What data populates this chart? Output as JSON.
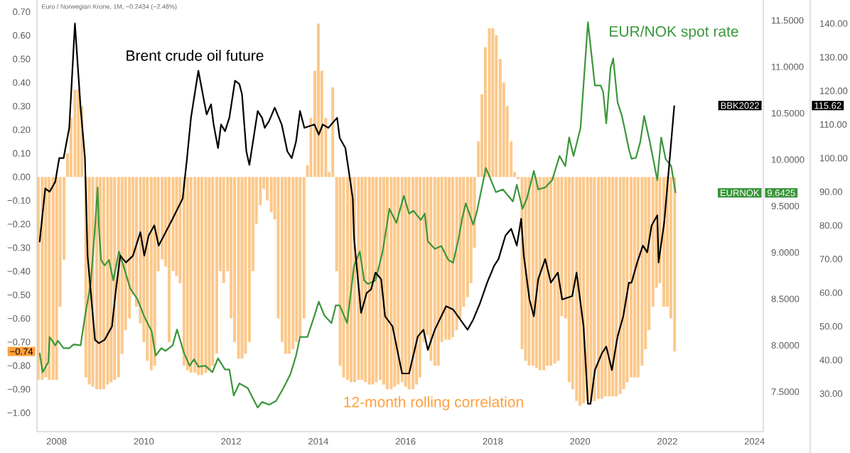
{
  "chart_data": {
    "type": "bar",
    "subtitle": "Euro / Norwegian Krone, 1M, −0.2434 (−2.46%)",
    "series": [
      {
        "name": "12-month rolling correlation",
        "color": "#fcc88a",
        "x": [
          2007.58,
          2007.67,
          2007.75,
          2007.83,
          2007.92,
          2008.0,
          2008.08,
          2008.17,
          2008.25,
          2008.33,
          2008.42,
          2008.5,
          2008.58,
          2008.67,
          2008.75,
          2008.83,
          2008.92,
          2009.0,
          2009.08,
          2009.17,
          2009.25,
          2009.33,
          2009.42,
          2009.5,
          2009.58,
          2009.67,
          2009.75,
          2009.83,
          2009.92,
          2010.0,
          2010.08,
          2010.17,
          2010.25,
          2010.33,
          2010.42,
          2010.5,
          2010.58,
          2010.67,
          2010.75,
          2010.83,
          2010.92,
          2011.0,
          2011.08,
          2011.17,
          2011.25,
          2011.33,
          2011.42,
          2011.5,
          2011.58,
          2011.67,
          2011.75,
          2011.83,
          2011.92,
          2012.0,
          2012.08,
          2012.17,
          2012.25,
          2012.33,
          2012.42,
          2012.5,
          2012.58,
          2012.67,
          2012.75,
          2012.83,
          2012.92,
          2013.0,
          2013.08,
          2013.17,
          2013.25,
          2013.33,
          2013.42,
          2013.5,
          2013.58,
          2013.67,
          2013.75,
          2013.83,
          2013.92,
          2014.0,
          2014.08,
          2014.17,
          2014.25,
          2014.33,
          2014.42,
          2014.5,
          2014.58,
          2014.67,
          2014.75,
          2014.83,
          2014.92,
          2015.0,
          2015.08,
          2015.17,
          2015.25,
          2015.33,
          2015.42,
          2015.5,
          2015.58,
          2015.67,
          2015.75,
          2015.83,
          2015.92,
          2016.0,
          2016.08,
          2016.17,
          2016.25,
          2016.33,
          2016.42,
          2016.5,
          2016.58,
          2016.67,
          2016.75,
          2016.83,
          2016.92,
          2017.0,
          2017.08,
          2017.17,
          2017.25,
          2017.33,
          2017.42,
          2017.5,
          2017.58,
          2017.67,
          2017.75,
          2017.83,
          2017.92,
          2018.0,
          2018.08,
          2018.17,
          2018.25,
          2018.33,
          2018.42,
          2018.5,
          2018.58,
          2018.67,
          2018.75,
          2018.83,
          2018.92,
          2019.0,
          2019.08,
          2019.17,
          2019.25,
          2019.33,
          2019.42,
          2019.5,
          2019.58,
          2019.67,
          2019.75,
          2019.83,
          2019.92,
          2020.0,
          2020.08,
          2020.17,
          2020.25,
          2020.33,
          2020.42,
          2020.5,
          2020.58,
          2020.67,
          2020.75,
          2020.83,
          2020.92,
          2021.0,
          2021.08,
          2021.17,
          2021.25,
          2021.33,
          2021.42,
          2021.5,
          2021.58,
          2021.67,
          2021.75,
          2021.83,
          2021.92,
          2022.0,
          2022.08,
          2022.17
        ],
        "values": [
          -0.86,
          -0.86,
          -0.85,
          -0.86,
          -0.86,
          -0.86,
          -0.55,
          -0.35,
          0.1,
          0.25,
          0.37,
          0.37,
          0.3,
          -0.85,
          -0.88,
          -0.89,
          -0.9,
          -0.9,
          -0.9,
          -0.88,
          -0.87,
          -0.86,
          -0.85,
          -0.75,
          -0.65,
          -0.6,
          -0.5,
          -0.55,
          -0.62,
          -0.7,
          -0.78,
          -0.82,
          -0.8,
          -0.4,
          -0.35,
          -0.38,
          -0.7,
          -0.4,
          -0.42,
          -0.45,
          -0.8,
          -0.82,
          -0.83,
          -0.83,
          -0.84,
          -0.84,
          -0.83,
          -0.82,
          -0.8,
          -0.75,
          -0.4,
          -0.45,
          -0.4,
          -0.6,
          -0.7,
          -0.77,
          -0.77,
          -0.75,
          -0.7,
          -0.4,
          -0.2,
          -0.12,
          -0.05,
          -0.1,
          -0.15,
          -0.18,
          -0.6,
          -0.7,
          -0.75,
          -0.75,
          -0.73,
          -0.7,
          -0.68,
          -0.6,
          0.05,
          0.25,
          0.45,
          0.65,
          0.45,
          0.25,
          0.02,
          0.38,
          -0.4,
          -0.8,
          -0.85,
          -0.86,
          -0.87,
          -0.87,
          -0.86,
          -0.86,
          -0.87,
          -0.88,
          -0.88,
          -0.87,
          -0.86,
          -0.88,
          -0.9,
          -0.9,
          -0.89,
          -0.88,
          -0.87,
          -0.89,
          -0.9,
          -0.9,
          -0.88,
          -0.85,
          -0.7,
          -0.67,
          -0.78,
          -0.8,
          -0.8,
          -0.7,
          -0.69,
          -0.69,
          -0.68,
          -0.65,
          -0.6,
          -0.55,
          -0.51,
          -0.45,
          -0.3,
          0.15,
          0.35,
          0.55,
          0.63,
          0.63,
          0.6,
          0.5,
          0.4,
          0.3,
          0.15,
          0.02,
          -0.01,
          -0.73,
          -0.78,
          -0.8,
          -0.8,
          -0.81,
          -0.82,
          -0.82,
          -0.8,
          -0.8,
          -0.79,
          -0.78,
          -0.59,
          -0.6,
          -0.87,
          -0.9,
          -0.95,
          -0.97,
          -0.96,
          -0.95,
          -0.95,
          -0.95,
          -0.94,
          -0.94,
          -0.93,
          -0.93,
          -0.93,
          -0.93,
          -0.92,
          -0.9,
          -0.87,
          -0.85,
          -0.85,
          -0.85,
          -0.8,
          -0.73,
          -0.65,
          -0.55,
          -0.47,
          -0.45,
          -0.55,
          -0.55,
          -0.6,
          -0.74
        ]
      },
      {
        "name": "Brent crude oil future",
        "type": "line",
        "axis": "y3",
        "color": "#000000",
        "x": [
          2007.61,
          2007.74,
          2007.84,
          2007.97,
          2008.06,
          2008.16,
          2008.29,
          2008.42,
          2008.55,
          2008.65,
          2008.71,
          2008.88,
          2008.97,
          2009.1,
          2009.27,
          2009.36,
          2009.46,
          2009.59,
          2009.75,
          2009.92,
          2010.01,
          2010.11,
          2010.24,
          2010.34,
          2010.66,
          2010.89,
          2010.99,
          2011.08,
          2011.25,
          2011.38,
          2011.44,
          2011.54,
          2011.6,
          2011.7,
          2011.77,
          2011.86,
          2011.96,
          2012.09,
          2012.19,
          2012.25,
          2012.35,
          2012.42,
          2012.61,
          2012.71,
          2012.77,
          2012.87,
          2013.0,
          2013.16,
          2013.29,
          2013.39,
          2013.49,
          2013.58,
          2013.68,
          2013.91,
          2014.01,
          2014.1,
          2014.23,
          2014.43,
          2014.49,
          2014.62,
          2014.79,
          2014.82,
          2014.98,
          2015.11,
          2015.21,
          2015.31,
          2015.44,
          2015.53,
          2015.7,
          2015.92,
          2016.08,
          2016.28,
          2016.41,
          2016.51,
          2016.67,
          2016.93,
          2017.09,
          2017.42,
          2017.55,
          2017.71,
          2017.87,
          2018.03,
          2018.13,
          2018.29,
          2018.42,
          2018.55,
          2018.65,
          2018.71,
          2018.84,
          2018.94,
          2019.04,
          2019.2,
          2019.33,
          2019.49,
          2019.59,
          2019.82,
          2019.92,
          2020.08,
          2020.18,
          2020.24,
          2020.34,
          2020.5,
          2020.6,
          2020.73,
          2020.86,
          2020.99,
          2021.12,
          2021.18,
          2021.31,
          2021.44,
          2021.54,
          2021.64,
          2021.77,
          2021.8,
          2021.93,
          2022.03,
          2022.16
        ],
        "values": [
          75,
          91,
          90,
          93,
          100,
          100,
          109,
          140,
          115,
          100,
          71,
          46,
          45,
          46,
          50,
          61,
          71,
          69,
          71,
          78,
          71,
          77,
          80,
          74,
          82,
          88,
          100,
          112,
          126,
          117,
          113,
          116,
          110,
          103,
          110,
          108,
          112,
          123,
          122,
          119,
          102,
          98,
          114,
          112,
          109,
          111,
          115,
          110,
          102,
          100,
          105,
          114,
          109,
          110,
          107,
          110,
          109,
          112,
          106,
          103,
          88,
          76,
          54,
          60,
          61,
          66,
          64,
          53,
          50,
          36,
          36,
          47,
          49,
          43,
          49,
          56,
          55,
          49,
          52,
          57,
          63,
          68,
          70,
          77,
          79,
          74,
          82,
          71,
          58,
          53,
          64,
          70,
          63,
          66,
          58,
          59,
          66,
          50,
          27,
          27,
          37,
          42,
          44,
          37,
          47,
          53,
          63,
          63,
          69,
          74,
          72,
          80,
          83,
          69,
          81,
          96,
          115.62
        ]
      },
      {
        "name": "EUR/NOK spot rate",
        "type": "line",
        "axis": "y2",
        "color": "#3b963b",
        "x": [
          2007.61,
          2007.68,
          2007.81,
          2007.84,
          2007.97,
          2008.03,
          2008.16,
          2008.29,
          2008.39,
          2008.55,
          2008.65,
          2008.78,
          2008.88,
          2008.94,
          2008.97,
          2009.02,
          2009.1,
          2009.2,
          2009.3,
          2009.43,
          2009.53,
          2009.69,
          2009.85,
          2010.01,
          2010.18,
          2010.27,
          2010.4,
          2010.5,
          2010.66,
          2010.76,
          2010.92,
          2011.05,
          2011.15,
          2011.25,
          2011.41,
          2011.57,
          2011.7,
          2011.86,
          2011.96,
          2012.06,
          2012.19,
          2012.38,
          2012.61,
          2012.71,
          2012.87,
          2013.03,
          2013.2,
          2013.36,
          2013.49,
          2013.58,
          2013.75,
          2013.91,
          2014.01,
          2014.14,
          2014.3,
          2014.4,
          2014.49,
          2014.66,
          2014.82,
          2014.95,
          2015.05,
          2015.14,
          2015.31,
          2015.47,
          2015.63,
          2015.79,
          2015.96,
          2016.08,
          2016.18,
          2016.35,
          2016.44,
          2016.51,
          2016.67,
          2016.82,
          2016.98,
          2017.09,
          2017.22,
          2017.29,
          2017.38,
          2017.55,
          2017.64,
          2017.74,
          2017.84,
          2017.94,
          2018.07,
          2018.23,
          2018.46,
          2018.55,
          2018.68,
          2018.78,
          2018.94,
          2019.04,
          2019.2,
          2019.36,
          2019.53,
          2019.66,
          2019.75,
          2019.85,
          2020.01,
          2020.18,
          2020.34,
          2020.47,
          2020.53,
          2020.6,
          2020.7,
          2020.76,
          2020.86,
          2020.96,
          2021.02,
          2021.12,
          2021.18,
          2021.28,
          2021.38,
          2021.47,
          2021.6,
          2021.77,
          2021.86,
          2021.96,
          2022.09,
          2022.19
        ],
        "values": [
          7.92,
          7.71,
          7.82,
          8.09,
          8.0,
          8.05,
          7.97,
          7.97,
          8.01,
          8.0,
          8.31,
          8.66,
          9.27,
          9.7,
          9.27,
          8.92,
          8.86,
          8.92,
          8.7,
          9.01,
          8.86,
          8.61,
          8.5,
          8.31,
          8.15,
          7.89,
          7.97,
          7.94,
          8.0,
          8.17,
          7.92,
          7.78,
          7.85,
          7.77,
          7.78,
          7.71,
          7.86,
          7.74,
          7.74,
          7.46,
          7.59,
          7.54,
          7.33,
          7.39,
          7.36,
          7.4,
          7.54,
          7.69,
          7.89,
          8.09,
          8.09,
          8.32,
          8.47,
          8.32,
          8.24,
          8.43,
          8.43,
          8.24,
          8.86,
          9.01,
          8.7,
          8.66,
          8.7,
          9.0,
          9.47,
          9.32,
          9.61,
          9.42,
          9.45,
          9.35,
          9.42,
          9.12,
          9.04,
          9.07,
          8.92,
          8.89,
          9.16,
          9.35,
          9.53,
          9.3,
          9.45,
          9.68,
          9.91,
          9.8,
          9.65,
          9.68,
          9.55,
          9.73,
          9.47,
          9.58,
          9.88,
          9.68,
          9.7,
          9.78,
          10.04,
          9.93,
          10.24,
          10.04,
          10.34,
          11.48,
          10.8,
          10.8,
          10.73,
          10.39,
          10.99,
          11.09,
          10.62,
          10.47,
          10.34,
          10.11,
          10.01,
          10.02,
          10.19,
          10.47,
          10.19,
          9.78,
          10.24,
          10.01,
          9.93,
          9.6425
        ]
      }
    ],
    "xlim": [
      2007.55,
      2024.2
    ],
    "xticks": [
      2008,
      2010,
      2012,
      2014,
      2016,
      2018,
      2020,
      2022,
      2024
    ],
    "ylim": [
      -1.08,
      0.75
    ],
    "yticks": [
      {
        "value": -1.0,
        "label": "−1.00"
      },
      {
        "value": -0.9,
        "label": "−0.90"
      },
      {
        "value": -0.8,
        "label": "−0.80"
      },
      {
        "value": -0.7,
        "label": "−0.70"
      },
      {
        "value": -0.6,
        "label": "−0.60"
      },
      {
        "value": -0.5,
        "label": "−0.50"
      },
      {
        "value": -0.4,
        "label": "−0.40"
      },
      {
        "value": -0.3,
        "label": "−0.30"
      },
      {
        "value": -0.2,
        "label": "−0.20"
      },
      {
        "value": -0.1,
        "label": "−0.10"
      },
      {
        "value": 0,
        "label": "0.00"
      },
      {
        "value": 0.1,
        "label": "0.10"
      },
      {
        "value": 0.2,
        "label": "0.20"
      },
      {
        "value": 0.3,
        "label": "0.30"
      },
      {
        "value": 0.4,
        "label": "0.40"
      },
      {
        "value": 0.5,
        "label": "0.50"
      },
      {
        "value": 0.6,
        "label": "0.60"
      },
      {
        "value": 0.7,
        "label": "0.70"
      }
    ],
    "y2lim": [
      7.07,
      11.72
    ],
    "y2ticks": [
      {
        "value": 7.5,
        "label": "7.5000"
      },
      {
        "value": 8.0,
        "label": "8.0000"
      },
      {
        "value": 8.5,
        "label": "8.5000"
      },
      {
        "value": 9.0,
        "label": "9.0000"
      },
      {
        "value": 9.5,
        "label": "9.5000"
      },
      {
        "value": 10.0,
        "label": "10.0000"
      },
      {
        "value": 10.5,
        "label": "10.5000"
      },
      {
        "value": 11.0,
        "label": "11.0000"
      },
      {
        "value": 11.5,
        "label": "11.5000"
      }
    ],
    "y3lim": [
      18.7,
      147
    ],
    "y3ticks": [
      {
        "value": 30,
        "label": "30.00"
      },
      {
        "value": 40,
        "label": "40.00"
      },
      {
        "value": 50,
        "label": "50.00"
      },
      {
        "value": 60,
        "label": "60.00"
      },
      {
        "value": 70,
        "label": "70.00"
      },
      {
        "value": 80,
        "label": "80.00"
      },
      {
        "value": 90,
        "label": "90.00"
      },
      {
        "value": 100,
        "label": "100.00"
      },
      {
        "value": 110,
        "label": "110.00"
      },
      {
        "value": 120,
        "label": "120.00"
      },
      {
        "value": 130,
        "label": "130.00"
      },
      {
        "value": 140,
        "label": "140.00"
      }
    ],
    "annotations": [
      "−0.74",
      "BBK2022",
      "115.62",
      "EURNOK",
      "9.6425"
    ]
  }
}
